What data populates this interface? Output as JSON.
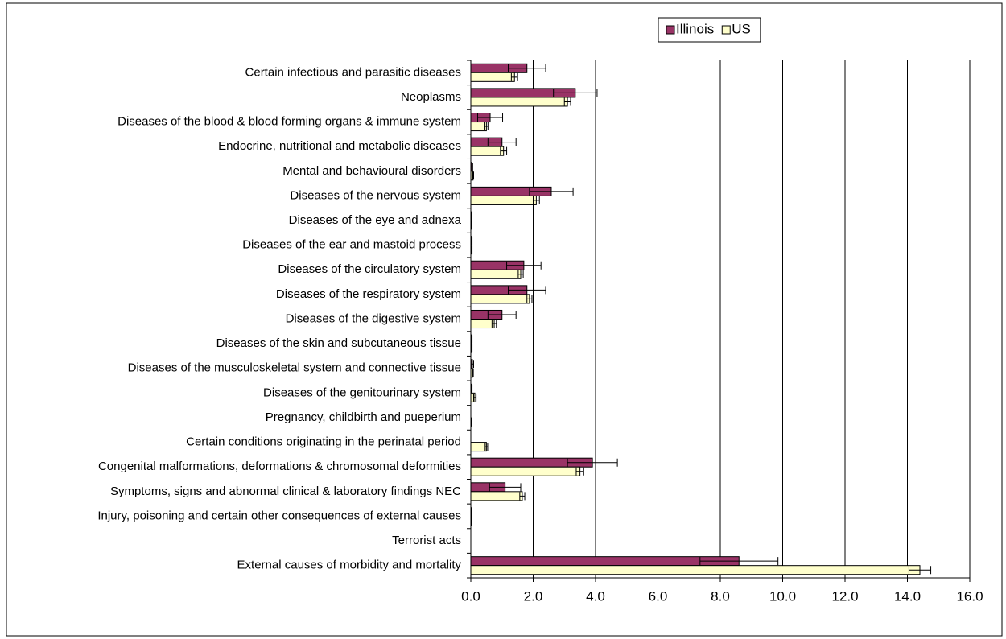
{
  "chart_data": {
    "type": "bar",
    "orientation": "horizontal",
    "categories": [
      "Certain infectious and parasitic diseases",
      "Neoplasms",
      "Diseases of the blood & blood forming organs & immune system",
      "Endocrine, nutritional and metabolic diseases",
      "Mental and behavioural disorders",
      "Diseases of the nervous system",
      "Diseases of the eye and adnexa",
      "Diseases of the ear and mastoid process",
      "Diseases of the circulatory system",
      "Diseases of the respiratory system",
      "Diseases of the digestive system",
      "Diseases of the skin and subcutaneous tissue",
      "Diseases of the musculoskeletal system and connective tissue",
      "Diseases of the genitourinary system",
      "Pregnancy, childbirth and pueperium",
      "Certain conditions originating in the perinatal period",
      "Congenital malformations, deformations & chromosomal deformities",
      "Symptoms, signs and abnormal clinical & laboratory findings NEC",
      "Injury, poisoning and certain other consequences of external causes",
      "Terrorist acts",
      "External causes of morbidity and mortality"
    ],
    "series": [
      {
        "name": "Illinois",
        "color": "#993366",
        "values": [
          1.8,
          3.35,
          0.62,
          1.0,
          0.03,
          2.58,
          0.01,
          0.02,
          1.7,
          1.8,
          1.0,
          0.02,
          0.05,
          0.02,
          0.0,
          0.0,
          3.9,
          1.1,
          0.01,
          0.0,
          8.6
        ],
        "errors": [
          0.6,
          0.7,
          0.4,
          0.45,
          0.03,
          0.7,
          0.01,
          0.02,
          0.55,
          0.6,
          0.45,
          0.02,
          0.04,
          0.02,
          0.0,
          0.0,
          0.8,
          0.5,
          0.01,
          0.0,
          1.25
        ]
      },
      {
        "name": "US",
        "color": "#ffffcc",
        "values": [
          1.4,
          3.1,
          0.5,
          1.05,
          0.07,
          2.1,
          0.01,
          0.03,
          1.6,
          1.88,
          0.75,
          0.03,
          0.06,
          0.13,
          0.01,
          0.5,
          3.5,
          1.65,
          0.02,
          0.0,
          14.4
        ],
        "errors": [
          0.1,
          0.1,
          0.05,
          0.1,
          0.02,
          0.1,
          0.01,
          0.01,
          0.08,
          0.08,
          0.07,
          0.01,
          0.02,
          0.04,
          0.01,
          0.04,
          0.12,
          0.08,
          0.01,
          0.0,
          0.35
        ]
      }
    ],
    "xlim": [
      0,
      16
    ],
    "xticks": [
      {
        "value": 0,
        "label": "0.0"
      },
      {
        "value": 2,
        "label": "2.0"
      },
      {
        "value": 4,
        "label": "4.0"
      },
      {
        "value": 6,
        "label": "6.0"
      },
      {
        "value": 8,
        "label": "8.0"
      },
      {
        "value": 10,
        "label": "10.0"
      },
      {
        "value": 12,
        "label": "12.0"
      },
      {
        "value": 14,
        "label": "14.0"
      },
      {
        "value": 16,
        "label": "16.0"
      }
    ],
    "grid": true,
    "legend": "top"
  }
}
